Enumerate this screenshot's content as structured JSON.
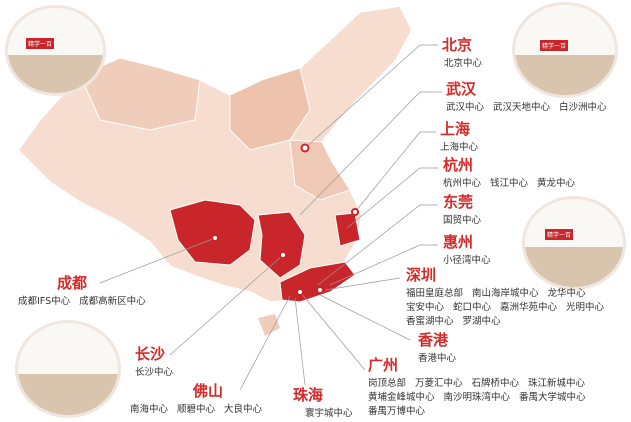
{
  "logo": "精学一百",
  "cities": [
    {
      "name": "北京",
      "centers": [
        [
          "北京中心"
        ]
      ]
    },
    {
      "name": "武汉",
      "centers": [
        [
          "武汉中心",
          "武汉天地中心",
          "白沙洲中心"
        ]
      ]
    },
    {
      "name": "上海",
      "centers": [
        [
          "上海中心"
        ]
      ]
    },
    {
      "name": "杭州",
      "centers": [
        [
          "杭州中心",
          "钱江中心",
          "黄龙中心"
        ]
      ]
    },
    {
      "name": "东莞",
      "centers": [
        [
          "国贸中心"
        ]
      ]
    },
    {
      "name": "惠州",
      "centers": [
        [
          "小径湾中心"
        ]
      ]
    },
    {
      "name": "深圳",
      "centers": [
        [
          "福田皇庭总部",
          "南山海岸城中心",
          "龙华中心"
        ],
        [
          "宝安中心",
          "蛇口中心",
          "嘉洲华苑中心",
          "光明中心"
        ],
        [
          "香蜜湖中心",
          "罗湖中心"
        ]
      ]
    },
    {
      "name": "香港",
      "centers": [
        [
          "香港中心"
        ]
      ]
    },
    {
      "name": "广州",
      "centers": [
        [
          "岗顶总部",
          "万菱汇中心",
          "石牌桥中心",
          "珠江新城中心"
        ],
        [
          "黄埔金峰城中心",
          "南沙明珠湾中心",
          "番禺大学城中心"
        ],
        [
          "番禺万博中心"
        ]
      ]
    },
    {
      "name": "珠海",
      "centers": [
        [
          "寰宇城中心"
        ]
      ]
    },
    {
      "name": "佛山",
      "centers": [
        [
          "南海中心",
          "顺碧中心",
          "大良中心"
        ]
      ]
    },
    {
      "name": "长沙",
      "centers": [
        [
          "长沙中心"
        ]
      ]
    },
    {
      "name": "成都",
      "centers": [
        [
          "成都IFS中心",
          "成都高新区中心"
        ]
      ]
    }
  ]
}
